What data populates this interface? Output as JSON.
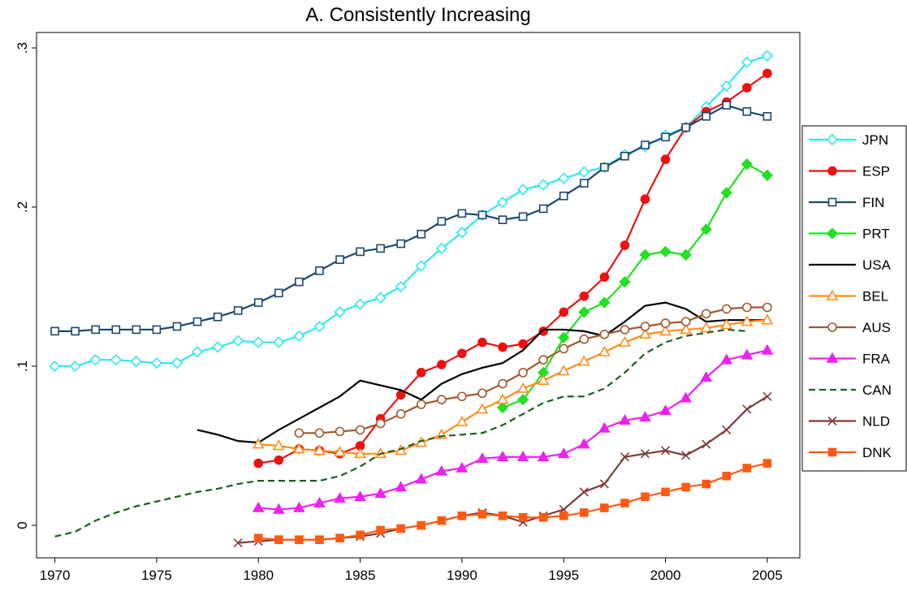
{
  "chart_data": {
    "type": "line",
    "title": "A. Consistently Increasing",
    "x": [
      1970,
      1971,
      1972,
      1973,
      1974,
      1975,
      1976,
      1977,
      1978,
      1979,
      1980,
      1981,
      1982,
      1983,
      1984,
      1985,
      1986,
      1987,
      1988,
      1989,
      1990,
      1991,
      1992,
      1993,
      1994,
      1995,
      1996,
      1997,
      1998,
      1999,
      2000,
      2001,
      2002,
      2003,
      2004,
      2005
    ],
    "xlim": [
      1969.1,
      2006.6
    ],
    "xticks": [
      1970,
      1975,
      1980,
      1985,
      1990,
      1995,
      2000,
      2005
    ],
    "ylim": [
      -0.0204,
      0.3097
    ],
    "yticks": [
      0,
      {
        "value": 0.1,
        "label": ".1"
      },
      {
        "value": 0.2,
        "label": ".2"
      },
      {
        "value": 0.3,
        "label": ".3"
      }
    ],
    "series": [
      {
        "name": "JPN",
        "color": "#30e8f0",
        "marker": "diamond",
        "hollow": true,
        "values": [
          0.1,
          0.1,
          0.104,
          0.104,
          0.103,
          0.102,
          0.102,
          0.109,
          0.112,
          0.116,
          0.115,
          0.115,
          0.119,
          0.125,
          0.134,
          0.139,
          0.143,
          0.15,
          0.163,
          0.174,
          0.184,
          0.195,
          0.203,
          0.211,
          0.214,
          0.218,
          0.222,
          0.225,
          0.233,
          0.238,
          0.245,
          0.25,
          0.263,
          0.276,
          0.291,
          0.295
        ]
      },
      {
        "name": "ESP",
        "color": "#ee1111",
        "marker": "circle",
        "hollow": false,
        "values": [
          null,
          null,
          null,
          null,
          null,
          null,
          null,
          null,
          null,
          null,
          0.039,
          0.041,
          0.048,
          0.047,
          0.045,
          0.05,
          0.067,
          0.082,
          0.096,
          0.101,
          0.108,
          0.115,
          0.112,
          0.114,
          0.122,
          0.134,
          0.144,
          0.156,
          0.176,
          0.205,
          0.23,
          0.25,
          0.26,
          0.266,
          0.275,
          0.284
        ]
      },
      {
        "name": "FIN",
        "color": "#1a476f",
        "marker": "square",
        "hollow": true,
        "values": [
          0.122,
          0.122,
          0.123,
          0.123,
          0.123,
          0.123,
          0.125,
          0.128,
          0.131,
          0.135,
          0.14,
          0.146,
          0.153,
          0.16,
          0.167,
          0.172,
          0.174,
          0.177,
          0.183,
          0.191,
          0.196,
          0.195,
          0.192,
          0.194,
          0.199,
          0.207,
          0.215,
          0.225,
          0.232,
          0.239,
          0.244,
          0.25,
          0.257,
          0.264,
          0.26,
          0.257
        ]
      },
      {
        "name": "PRT",
        "color": "#22e022",
        "marker": "diamond",
        "hollow": false,
        "values": [
          null,
          null,
          null,
          null,
          null,
          null,
          null,
          null,
          null,
          null,
          null,
          null,
          null,
          null,
          null,
          null,
          null,
          null,
          null,
          null,
          null,
          null,
          0.074,
          0.079,
          0.096,
          0.118,
          0.134,
          0.14,
          0.153,
          0.17,
          0.172,
          0.17,
          0.186,
          0.209,
          0.227,
          0.22
        ]
      },
      {
        "name": "USA",
        "color": "#000000",
        "marker": "none",
        "hollow": false,
        "values": [
          null,
          null,
          null,
          null,
          null,
          null,
          null,
          0.06,
          0.057,
          0.053,
          0.052,
          0.06,
          0.067,
          0.074,
          0.081,
          0.091,
          0.088,
          0.085,
          0.079,
          0.089,
          0.095,
          0.099,
          0.102,
          0.11,
          0.123,
          0.123,
          0.122,
          0.119,
          0.128,
          0.138,
          0.14,
          0.136,
          0.128,
          0.129,
          0.129,
          0.129
        ]
      },
      {
        "name": "BEL",
        "color": "#ff8c1a",
        "marker": "triangle",
        "hollow": true,
        "values": [
          null,
          null,
          null,
          null,
          null,
          null,
          null,
          null,
          null,
          null,
          0.051,
          0.05,
          0.048,
          0.047,
          0.046,
          0.045,
          0.045,
          0.047,
          0.052,
          0.057,
          0.065,
          0.073,
          0.079,
          0.086,
          0.091,
          0.097,
          0.103,
          0.109,
          0.115,
          0.12,
          0.122,
          0.123,
          0.124,
          0.126,
          0.128,
          0.129
        ]
      },
      {
        "name": "AUS",
        "color": "#a0582e",
        "marker": "circle",
        "hollow": true,
        "values": [
          null,
          null,
          null,
          null,
          null,
          null,
          null,
          null,
          null,
          null,
          null,
          null,
          0.058,
          0.058,
          0.059,
          0.06,
          0.064,
          0.07,
          0.076,
          0.079,
          0.081,
          0.083,
          0.089,
          0.096,
          0.104,
          0.111,
          0.117,
          0.12,
          0.123,
          0.125,
          0.127,
          0.128,
          0.133,
          0.136,
          0.137,
          0.137
        ]
      },
      {
        "name": "FRA",
        "color": "#ee22ee",
        "marker": "triangle",
        "hollow": false,
        "values": [
          null,
          null,
          null,
          null,
          null,
          null,
          null,
          null,
          null,
          null,
          0.011,
          0.01,
          0.011,
          0.014,
          0.017,
          0.018,
          0.02,
          0.024,
          0.029,
          0.034,
          0.036,
          0.042,
          0.043,
          0.043,
          0.043,
          0.045,
          0.051,
          0.061,
          0.066,
          0.068,
          0.072,
          0.08,
          0.093,
          0.104,
          0.107,
          0.11
        ]
      },
      {
        "name": "CAN",
        "color": "#1b5e20",
        "marker": "none",
        "hollow": false,
        "dashed": true,
        "values": [
          -0.007,
          -0.004,
          0.003,
          0.008,
          0.012,
          0.015,
          0.018,
          0.021,
          0.023,
          0.026,
          0.028,
          0.028,
          0.028,
          0.028,
          0.031,
          0.037,
          0.045,
          0.048,
          0.053,
          0.056,
          0.057,
          0.058,
          0.063,
          0.07,
          0.077,
          0.081,
          0.081,
          0.086,
          0.096,
          0.108,
          0.115,
          0.119,
          0.121,
          0.123,
          0.122,
          null
        ]
      },
      {
        "name": "NLD",
        "color": "#7d3b3b",
        "marker": "x",
        "hollow": false,
        "values": [
          null,
          null,
          null,
          null,
          null,
          null,
          null,
          null,
          null,
          -0.011,
          -0.01,
          -0.009,
          -0.009,
          -0.009,
          -0.008,
          -0.007,
          -0.005,
          -0.002,
          0.0,
          0.003,
          0.006,
          0.008,
          0.006,
          0.002,
          0.006,
          0.01,
          0.021,
          0.026,
          0.043,
          0.045,
          0.047,
          0.044,
          0.051,
          0.06,
          0.073,
          0.081
        ]
      },
      {
        "name": "DNK",
        "color": "#ff5a14",
        "marker": "square",
        "hollow": false,
        "values": [
          null,
          null,
          null,
          null,
          null,
          null,
          null,
          null,
          null,
          null,
          -0.008,
          -0.009,
          -0.009,
          -0.009,
          -0.008,
          -0.006,
          -0.003,
          -0.002,
          0.0,
          0.003,
          0.006,
          0.007,
          0.006,
          0.005,
          0.005,
          0.006,
          0.008,
          0.011,
          0.014,
          0.018,
          0.021,
          0.024,
          0.026,
          0.031,
          0.036,
          0.039
        ]
      }
    ]
  }
}
